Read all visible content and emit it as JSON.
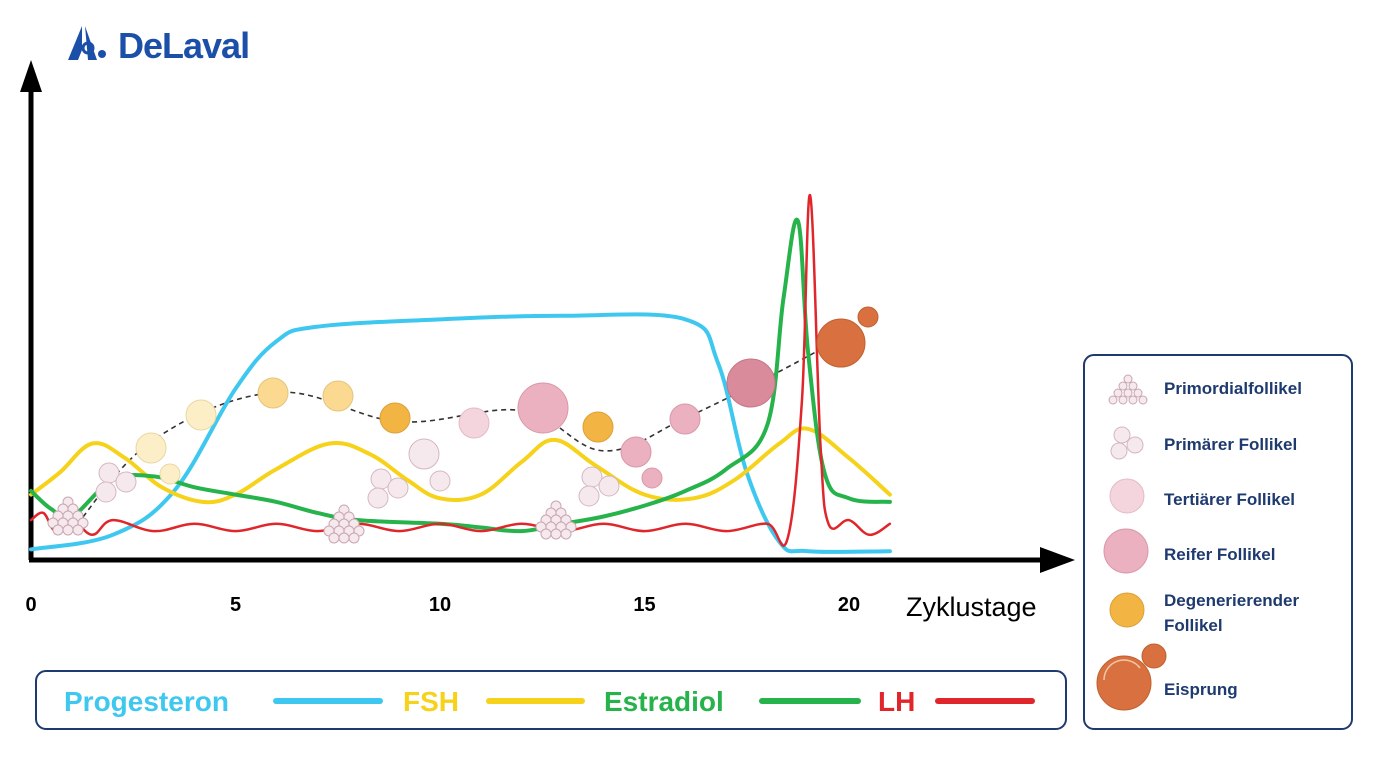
{
  "brand": {
    "name": "DeLaval",
    "color": "#1c4fa8",
    "icon": "delaval-logo-icon"
  },
  "chart_data": {
    "type": "line",
    "xlabel": "Zyklustage",
    "ylabel": "",
    "xlim": [
      0,
      25
    ],
    "ylim": [
      0,
      100
    ],
    "x_ticks": [
      "0",
      "5",
      "10",
      "15",
      "20"
    ],
    "grid": false,
    "legend_position": "bottom",
    "series": [
      {
        "name": "Progesteron",
        "color": "#3fc8ef",
        "points": [
          [
            0,
            1
          ],
          [
            2,
            5
          ],
          [
            3.5,
            17
          ],
          [
            5,
            45
          ],
          [
            6,
            58
          ],
          [
            7,
            62
          ],
          [
            10,
            64
          ],
          [
            13,
            65
          ],
          [
            16,
            64
          ],
          [
            16.8,
            52
          ],
          [
            17.5,
            22
          ],
          [
            18.3,
            3
          ],
          [
            19,
            0.5
          ],
          [
            21,
            0.5
          ]
        ]
      },
      {
        "name": "FSH",
        "color": "#f6d21a",
        "points": [
          [
            0,
            16
          ],
          [
            0.7,
            22
          ],
          [
            1.5,
            30
          ],
          [
            2.3,
            26
          ],
          [
            3.2,
            18
          ],
          [
            4.2,
            14
          ],
          [
            5,
            16
          ],
          [
            6,
            23
          ],
          [
            7.3,
            30
          ],
          [
            8.3,
            27
          ],
          [
            9.2,
            20
          ],
          [
            10,
            15
          ],
          [
            11,
            16
          ],
          [
            12,
            25
          ],
          [
            12.8,
            31
          ],
          [
            13.8,
            24
          ],
          [
            15,
            16
          ],
          [
            16.2,
            15
          ],
          [
            17.2,
            20
          ],
          [
            18.3,
            30
          ],
          [
            19,
            34
          ],
          [
            20,
            26
          ],
          [
            21,
            16
          ]
        ]
      },
      {
        "name": "Estradiol",
        "color": "#27b34b",
        "points": [
          [
            0,
            17
          ],
          [
            0.5,
            12
          ],
          [
            1,
            10
          ],
          [
            2,
            20
          ],
          [
            3,
            21
          ],
          [
            4,
            18
          ],
          [
            5,
            16
          ],
          [
            6,
            14
          ],
          [
            7,
            11
          ],
          [
            8,
            9
          ],
          [
            10,
            8
          ],
          [
            11,
            7
          ],
          [
            12,
            6
          ],
          [
            13,
            8
          ],
          [
            14,
            10
          ],
          [
            15,
            13
          ],
          [
            16,
            17
          ],
          [
            17,
            23
          ],
          [
            18,
            35
          ],
          [
            18.4,
            70
          ],
          [
            18.75,
            91
          ],
          [
            19,
            55
          ],
          [
            19.4,
            22
          ],
          [
            20,
            15
          ],
          [
            21,
            14
          ]
        ]
      },
      {
        "name": "LH",
        "color": "#e0262b",
        "points": [
          [
            0,
            9
          ],
          [
            0.3,
            11
          ],
          [
            0.6,
            6
          ],
          [
            1,
            9
          ],
          [
            1.5,
            5
          ],
          [
            2,
            9
          ],
          [
            3,
            6
          ],
          [
            4,
            8
          ],
          [
            5,
            6
          ],
          [
            6,
            8
          ],
          [
            7,
            6
          ],
          [
            8,
            8
          ],
          [
            9,
            6
          ],
          [
            10,
            8
          ],
          [
            11,
            6
          ],
          [
            12,
            8
          ],
          [
            13,
            6
          ],
          [
            14,
            8
          ],
          [
            15,
            6
          ],
          [
            16,
            8
          ],
          [
            17,
            6
          ],
          [
            18,
            8
          ],
          [
            18.5,
            4
          ],
          [
            18.85,
            42
          ],
          [
            19.05,
            98
          ],
          [
            19.3,
            30
          ],
          [
            19.5,
            8
          ],
          [
            20,
            9
          ],
          [
            20.5,
            5
          ],
          [
            21,
            8
          ]
        ]
      }
    ],
    "follicle_trajectory": [
      [
        1,
        6
      ],
      [
        3,
        31
      ],
      [
        6,
        44
      ],
      [
        9,
        36
      ],
      [
        12,
        39
      ],
      [
        14,
        28
      ],
      [
        16,
        37
      ],
      [
        18,
        48
      ],
      [
        20,
        60
      ]
    ],
    "follicle_legend": [
      {
        "label": "Primordialfollikel",
        "icon": "primordial-follicle-icon"
      },
      {
        "label": "Primärer Follikel",
        "icon": "primary-follicle-icon"
      },
      {
        "label": "Tertiärer Follikel",
        "icon": "tertiary-follicle-icon"
      },
      {
        "label": "Reifer Follikel",
        "icon": "mature-follicle-icon"
      },
      {
        "label": "Degenerierender Follikel",
        "label_lines": [
          "Degenerierender",
          "Follikel"
        ],
        "icon": "degenerating-follicle-icon"
      },
      {
        "label": "Eisprung",
        "icon": "ovulation-icon"
      }
    ],
    "colors": {
      "follicle_pale": "#f6e9ee",
      "follicle_light_pink": "#f4d4dd",
      "follicle_pink": "#ebb1c0",
      "follicle_mature": "#d98a9b",
      "follicle_cream": "#fcefc8",
      "follicle_light_orange": "#fbd990",
      "follicle_degenerating": "#f2b442",
      "ovulation": "#d8713f",
      "legend_border": "#1e3a6e"
    }
  }
}
